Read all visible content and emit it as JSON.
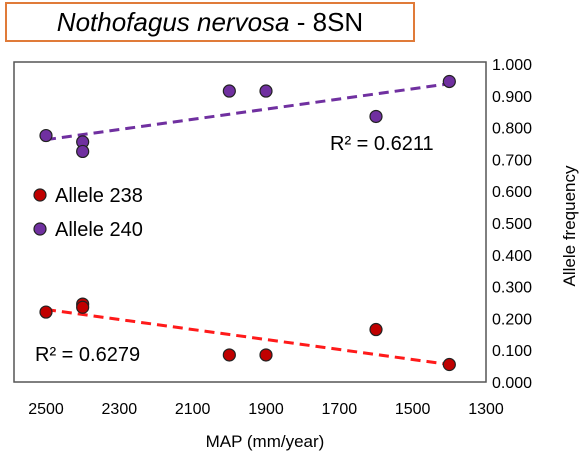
{
  "title": {
    "species": "Nothofagus nervosa",
    "separator": " - ",
    "code": "8SN"
  },
  "chart_data": {
    "type": "scatter",
    "title": "Nothofagus nervosa - 8SN",
    "xlabel": "MAP (mm/year)",
    "ylabel": "Allele frequency",
    "xlim": [
      2500,
      1300
    ],
    "x_reversed": true,
    "ylim": [
      0.0,
      1.0
    ],
    "x_ticks": [
      "2500",
      "2300",
      "2100",
      "1900",
      "1700",
      "1500",
      "1300"
    ],
    "y_ticks": [
      "0.000",
      "0.100",
      "0.200",
      "0.300",
      "0.400",
      "0.500",
      "0.600",
      "0.700",
      "0.800",
      "0.900",
      "1.000"
    ],
    "grid": false,
    "legend_placement": "left-middle",
    "series": [
      {
        "name": "Allele 238",
        "color": "#c00000",
        "points": [
          {
            "x": 2500,
            "y": 0.22
          },
          {
            "x": 2400,
            "y": 0.245
          },
          {
            "x": 2400,
            "y": 0.235
          },
          {
            "x": 2000,
            "y": 0.085
          },
          {
            "x": 1900,
            "y": 0.085
          },
          {
            "x": 1600,
            "y": 0.165
          },
          {
            "x": 1400,
            "y": 0.055
          }
        ],
        "trendline": {
          "x": [
            2500,
            1400
          ],
          "y": [
            0.228,
            0.055
          ],
          "color": "#ff1a1a"
        },
        "r2_label": "R² = 0.6279"
      },
      {
        "name": "Allele 240",
        "color": "#7030a0",
        "points": [
          {
            "x": 2500,
            "y": 0.775
          },
          {
            "x": 2400,
            "y": 0.755
          },
          {
            "x": 2400,
            "y": 0.725
          },
          {
            "x": 2000,
            "y": 0.915
          },
          {
            "x": 1900,
            "y": 0.915
          },
          {
            "x": 1600,
            "y": 0.835
          },
          {
            "x": 1400,
            "y": 0.945
          }
        ],
        "trendline": {
          "x": [
            2500,
            1400
          ],
          "y": [
            0.762,
            0.938
          ],
          "color": "#7030a0"
        },
        "r2_label": "R² = 0.6211"
      }
    ]
  }
}
